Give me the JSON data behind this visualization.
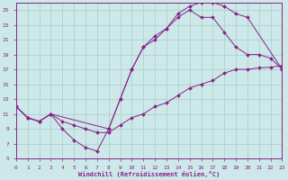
{
  "xlabel": "Windchill (Refroidissement éolien,°C)",
  "bg_color": "#cce8e8",
  "grid_color": "#aacccc",
  "line_color": "#882288",
  "xmin": 0,
  "xmax": 23,
  "ymin": 5,
  "ymax": 26,
  "yticks": [
    5,
    7,
    9,
    11,
    13,
    15,
    17,
    19,
    21,
    23,
    25
  ],
  "xticks": [
    0,
    1,
    2,
    3,
    4,
    5,
    6,
    7,
    8,
    9,
    10,
    11,
    12,
    13,
    14,
    15,
    16,
    17,
    18,
    19,
    20,
    21,
    22,
    23
  ],
  "curve1_x": [
    0,
    1,
    2,
    3,
    4,
    5,
    6,
    7,
    8,
    9,
    10,
    11,
    12,
    13,
    14,
    15,
    16,
    17,
    18,
    19,
    20,
    23
  ],
  "curve1_y": [
    12,
    10.5,
    10,
    11,
    9,
    7.5,
    6.5,
    6,
    9,
    13,
    17,
    20,
    21,
    22.5,
    24.5,
    25.5,
    26,
    26,
    25.5,
    24.5,
    24,
    17
  ],
  "curve2_x": [
    0,
    1,
    2,
    3,
    4,
    5,
    6,
    7,
    8,
    9,
    10,
    11,
    12,
    13,
    14,
    15,
    16,
    17,
    18,
    19,
    20,
    21,
    22,
    23
  ],
  "curve2_y": [
    12,
    10.5,
    10,
    11,
    10,
    9.5,
    9,
    8.5,
    8.5,
    9.5,
    10.5,
    11,
    12,
    12.5,
    13.5,
    14.5,
    15,
    15.5,
    16.5,
    17,
    17,
    17.2,
    17.3,
    17.5
  ],
  "curve3_x": [
    0,
    1,
    2,
    3,
    8,
    9,
    10,
    11,
    12,
    13,
    14,
    15,
    16,
    17,
    18,
    19,
    20,
    21,
    22,
    23
  ],
  "curve3_y": [
    12,
    10.5,
    10,
    11,
    9,
    13,
    17,
    20,
    21.5,
    22.5,
    24,
    25,
    24,
    24,
    22,
    20,
    19,
    19,
    18.5,
    17
  ]
}
